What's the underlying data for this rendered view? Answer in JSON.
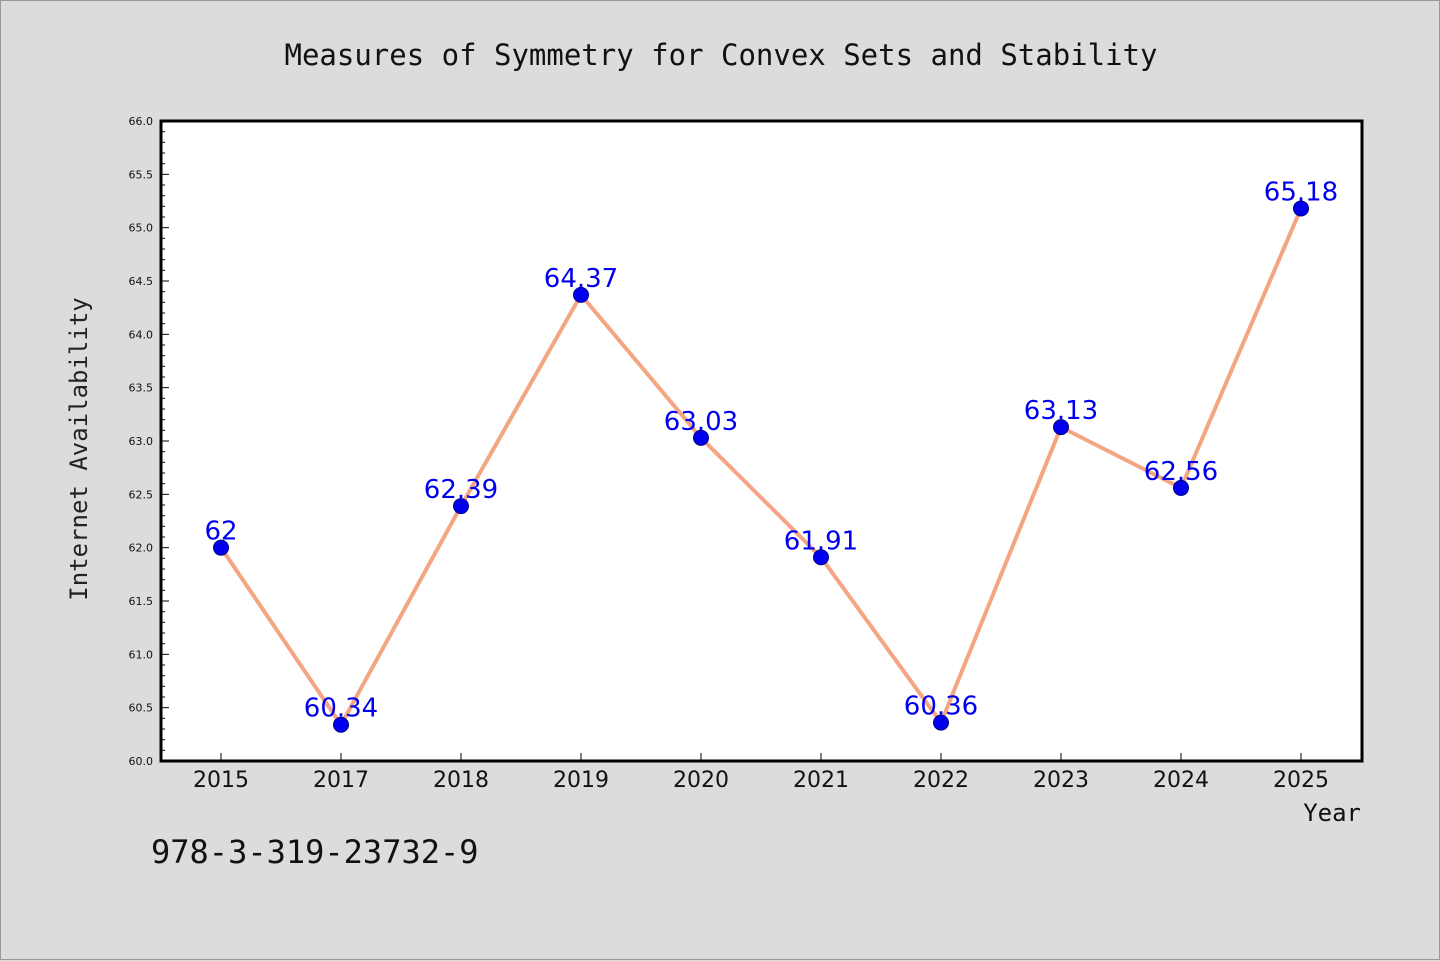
{
  "chart_data": {
    "type": "line",
    "title": "Measures of Symmetry for Convex Sets and Stability",
    "xlabel": "Year",
    "ylabel": "Internet Availability",
    "categories": [
      "2015",
      "2017",
      "2018",
      "2019",
      "2020",
      "2021",
      "2022",
      "2023",
      "2024",
      "2025"
    ],
    "series": [
      {
        "values": [
          62,
          60.34,
          62.39,
          64.37,
          63.03,
          61.91,
          60.36,
          63.13,
          62.56,
          65.18
        ],
        "labels": [
          "62",
          "60.34",
          "62.39",
          "64.37",
          "63.03",
          "61.91",
          "60.36",
          "63.13",
          "62.56",
          "65.18"
        ],
        "line_color": "#f4a582",
        "marker_color": "#0000ee"
      }
    ],
    "ylim": [
      60.0,
      66.0
    ],
    "yticks": [
      "60.0",
      "60.5",
      "61.0",
      "61.5",
      "62.0",
      "62.5",
      "63.0",
      "63.5",
      "64.0",
      "64.5",
      "65.0",
      "65.5",
      "66.0"
    ],
    "grid": false,
    "data_label_color": "#0000ee"
  },
  "footer": {
    "isbn": "978-3-319-23732-9"
  }
}
